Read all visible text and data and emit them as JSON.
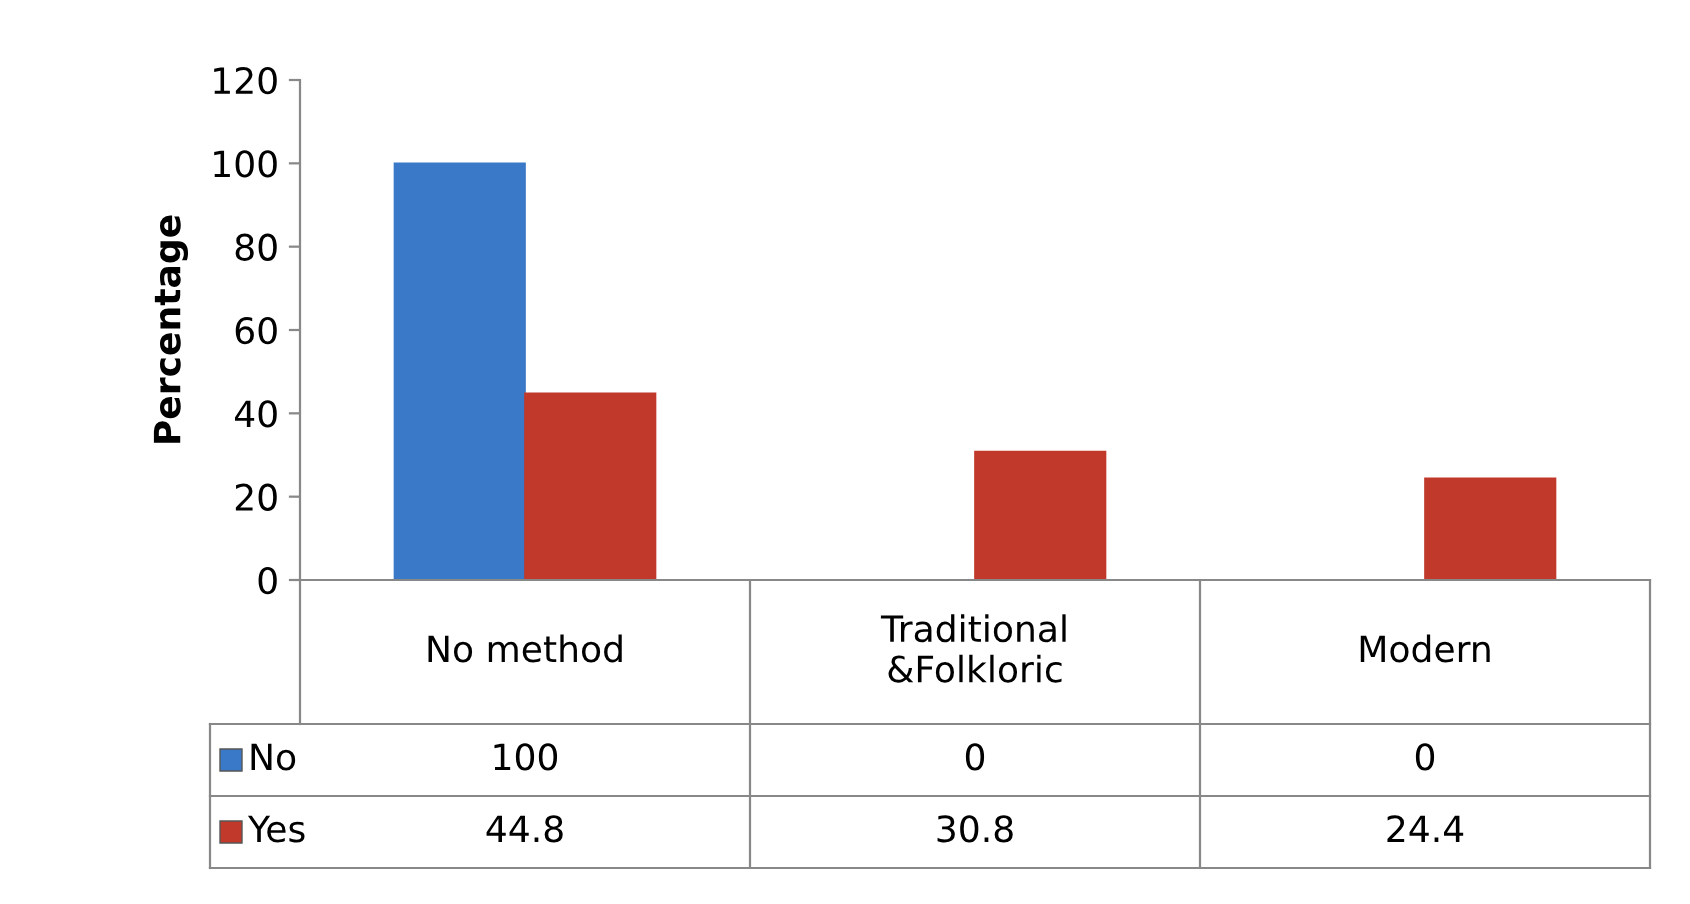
{
  "chart_data": {
    "type": "bar",
    "ylabel": "Percentage",
    "categories": [
      "No method",
      "Traditional\n&Folkloric",
      "Modern"
    ],
    "series": [
      {
        "name": "No",
        "color": "#3a78c8",
        "values": [
          100,
          0,
          0
        ]
      },
      {
        "name": "Yes",
        "color": "#c0392b",
        "values": [
          44.8,
          30.8,
          24.4
        ]
      }
    ],
    "ylim": [
      0,
      120
    ],
    "yticks": [
      0,
      20,
      40,
      60,
      80,
      100,
      120
    ],
    "grid": false,
    "legend": "bottom",
    "data_labels": true
  }
}
